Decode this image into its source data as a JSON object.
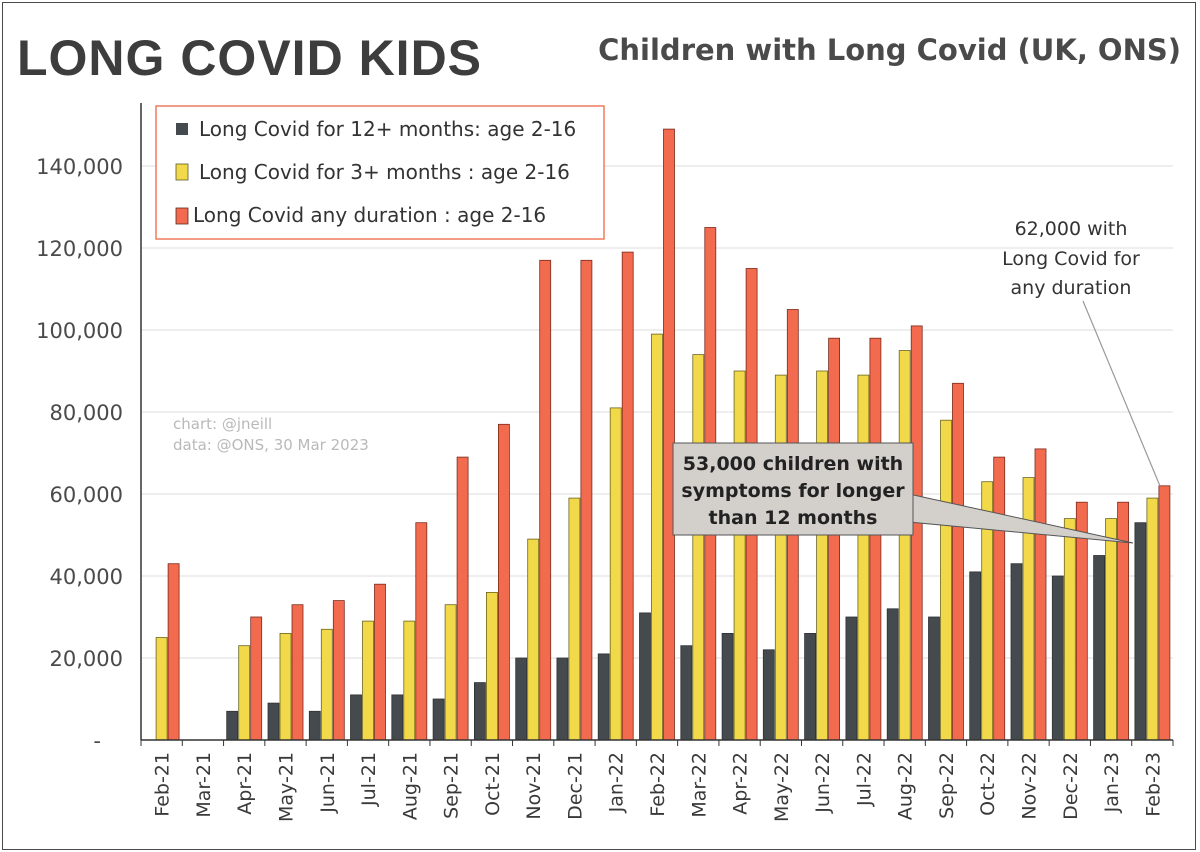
{
  "logo": {
    "text": "LONG COVID KIDS"
  },
  "chart_data": {
    "type": "bar",
    "title": "Children with Long Covid (UK, ONS)",
    "categories": [
      "Feb-21",
      "Mar-21",
      "Apr-21",
      "May-21",
      "Jun-21",
      "Jul-21",
      "Aug-21",
      "Sep-21",
      "Oct-21",
      "Nov-21",
      "Dec-21",
      "Jan-22",
      "Feb-22",
      "Mar-22",
      "Apr-22",
      "May-22",
      "Jun-22",
      "Jul-22",
      "Aug-22",
      "Sep-22",
      "Oct-22",
      "Nov-22",
      "Dec-22",
      "Jan-23",
      "Feb-23"
    ],
    "series": [
      {
        "name": "Long Covid for 12+ months: age 2-16",
        "color": "#454a4f",
        "values": [
          null,
          null,
          7000,
          9000,
          7000,
          11000,
          11000,
          10000,
          14000,
          20000,
          20000,
          21000,
          31000,
          23000,
          26000,
          22000,
          26000,
          30000,
          32000,
          30000,
          41000,
          43000,
          40000,
          45000,
          53000
        ]
      },
      {
        "name": "Long Covid for 3+ months : age 2-16",
        "color": "#f2d94a",
        "values": [
          25000,
          null,
          23000,
          26000,
          27000,
          29000,
          29000,
          33000,
          36000,
          49000,
          59000,
          81000,
          99000,
          94000,
          90000,
          89000,
          90000,
          89000,
          95000,
          78000,
          63000,
          64000,
          54000,
          54000,
          59000
        ]
      },
      {
        "name": "Long Covid any duration : age 2-16",
        "color": "#f26b4f",
        "values": [
          43000,
          null,
          30000,
          33000,
          34000,
          38000,
          53000,
          69000,
          77000,
          117000,
          117000,
          119000,
          149000,
          125000,
          115000,
          105000,
          98000,
          98000,
          101000,
          87000,
          69000,
          71000,
          58000,
          58000,
          62000
        ]
      }
    ],
    "y_ticks": [
      "-",
      "20,000",
      "40,000",
      "60,000",
      "80,000",
      "100,000",
      "120,000",
      "140,000"
    ],
    "ylim": [
      0,
      158000
    ],
    "grid": true,
    "legend_position": "top-left",
    "annotations": [
      {
        "text": [
          "62,000 with",
          "Long Covid for",
          "any duration"
        ],
        "target_category": "Feb-23",
        "target_value": 62000
      },
      {
        "text": [
          "53,000 children with",
          "symptoms for longer",
          "than 12 months"
        ],
        "target_category": "Feb-23",
        "target_value": 53000
      }
    ],
    "credits": [
      "chart: @jneill",
      "data: @ONS, 30 Mar 2023"
    ]
  }
}
